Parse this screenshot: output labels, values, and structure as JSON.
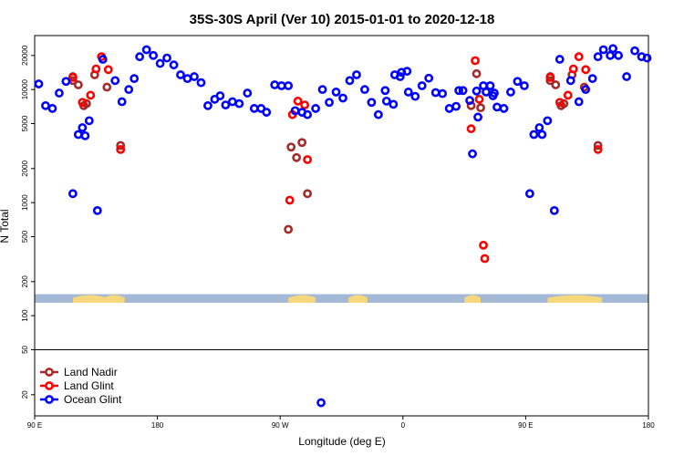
{
  "chart_data": {
    "type": "scatter",
    "title": "35S-30S April (Ver 10)   2015-01-01 to 2020-12-18",
    "xlabel": "Longitude (deg E)",
    "ylabel": "N Total",
    "x_scale": "extended longitude (deg E, 90E to 180 wrapping)",
    "xlim": [
      90,
      540
    ],
    "y_scale": "log",
    "ylim": [
      13,
      30000
    ],
    "x_ticks": [
      {
        "value": 90,
        "label": "90 E"
      },
      {
        "value": 180,
        "label": "180"
      },
      {
        "value": 270,
        "label": "90 W"
      },
      {
        "value": 360,
        "label": "0"
      },
      {
        "value": 450,
        "label": "90 E"
      },
      {
        "value": 540,
        "label": "180"
      }
    ],
    "y_ticks": [
      {
        "value": 20,
        "label": "20"
      },
      {
        "value": 50,
        "label": "50"
      },
      {
        "value": 100,
        "label": "100"
      },
      {
        "value": 200,
        "label": "200"
      },
      {
        "value": 500,
        "label": "500"
      },
      {
        "value": 1000,
        "label": "1000"
      },
      {
        "value": 2000,
        "label": "2000"
      },
      {
        "value": 5000,
        "label": "5000"
      },
      {
        "value": 10000,
        "label": "10000"
      },
      {
        "value": 20000,
        "label": "20000"
      }
    ],
    "reference_line_y": 50,
    "land_band_y": [
      130,
      155
    ],
    "band_colors": {
      "ocean": "#a3b9d6",
      "land": "#f7d77c"
    },
    "land_segments": [
      {
        "center": 130,
        "half_width": 12
      },
      {
        "center": 148,
        "half_width": 8
      },
      {
        "center": 286,
        "half_width": 10
      },
      {
        "center": 327,
        "half_width": 7
      },
      {
        "center": 411,
        "half_width": 6
      },
      {
        "center": 486,
        "half_width": 20
      }
    ],
    "legend": {
      "position": "bottom-left"
    },
    "series": [
      {
        "name": "Land Nadir",
        "color": "#a52a2a",
        "points": [
          [
            118,
            12000
          ],
          [
            118,
            13000
          ],
          [
            122,
            11000
          ],
          [
            126,
            7200
          ],
          [
            128,
            7500
          ],
          [
            134,
            13500
          ],
          [
            143,
            10500
          ],
          [
            153,
            3200
          ],
          [
            276,
            580
          ],
          [
            278,
            3100
          ],
          [
            282,
            2500
          ],
          [
            286,
            3400
          ],
          [
            290,
            1200
          ],
          [
            410,
            7200
          ],
          [
            414,
            13800
          ],
          [
            417,
            6900
          ],
          [
            468,
            12000
          ],
          [
            468,
            13000
          ],
          [
            472,
            11000
          ],
          [
            476,
            7200
          ],
          [
            478,
            7500
          ],
          [
            484,
            13500
          ],
          [
            493,
            10500
          ],
          [
            503,
            3200
          ]
        ]
      },
      {
        "name": "Land Glint",
        "color": "#ff0000",
        "points": [
          [
            118,
            12800
          ],
          [
            125,
            7700
          ],
          [
            131,
            8900
          ],
          [
            135,
            15200
          ],
          [
            139,
            19500
          ],
          [
            144,
            15000
          ],
          [
            153,
            2950
          ],
          [
            277,
            1050
          ],
          [
            279,
            6000
          ],
          [
            283,
            7900
          ],
          [
            288,
            7300
          ],
          [
            290,
            2400
          ],
          [
            410,
            4500
          ],
          [
            413,
            18000
          ],
          [
            416,
            8200
          ],
          [
            419,
            420
          ],
          [
            420,
            320
          ],
          [
            468,
            12800
          ],
          [
            475,
            7700
          ],
          [
            481,
            8900
          ],
          [
            485,
            15200
          ],
          [
            489,
            19500
          ],
          [
            494,
            15000
          ],
          [
            503,
            2950
          ]
        ]
      },
      {
        "name": "Ocean Glint",
        "color": "#0000ff",
        "points": [
          [
            93,
            11200
          ],
          [
            98,
            7200
          ],
          [
            103,
            6800
          ],
          [
            108,
            9300
          ],
          [
            113,
            11800
          ],
          [
            118,
            1200
          ],
          [
            122,
            4000
          ],
          [
            125,
            4600
          ],
          [
            127,
            3900
          ],
          [
            130,
            5300
          ],
          [
            136,
            850
          ],
          [
            140,
            18500
          ],
          [
            149,
            12000
          ],
          [
            154,
            7800
          ],
          [
            159,
            10000
          ],
          [
            163,
            12500
          ],
          [
            167,
            19500
          ],
          [
            172,
            22500
          ],
          [
            177,
            20000
          ],
          [
            182,
            17000
          ],
          [
            187,
            19000
          ],
          [
            192,
            16500
          ],
          [
            197,
            13500
          ],
          [
            202,
            12500
          ],
          [
            207,
            13000
          ],
          [
            212,
            11500
          ],
          [
            217,
            7200
          ],
          [
            222,
            8200
          ],
          [
            226,
            8800
          ],
          [
            230,
            7300
          ],
          [
            235,
            7800
          ],
          [
            240,
            7500
          ],
          [
            246,
            9300
          ],
          [
            251,
            6800
          ],
          [
            256,
            6800
          ],
          [
            260,
            6300
          ],
          [
            266,
            11000
          ],
          [
            271,
            10800
          ],
          [
            276,
            10800
          ],
          [
            281,
            6500
          ],
          [
            286,
            6300
          ],
          [
            290,
            6000
          ],
          [
            296,
            6800
          ],
          [
            301,
            10000
          ],
          [
            306,
            7700
          ],
          [
            311,
            9500
          ],
          [
            316,
            8400
          ],
          [
            321,
            12000
          ],
          [
            326,
            13500
          ],
          [
            332,
            10000
          ],
          [
            337,
            7700
          ],
          [
            342,
            6000
          ],
          [
            348,
            7900
          ],
          [
            354,
            13500
          ],
          [
            359,
            14200
          ],
          [
            364,
            9500
          ],
          [
            369,
            8700
          ],
          [
            374,
            10800
          ],
          [
            379,
            12600
          ],
          [
            384,
            9400
          ],
          [
            389,
            9200
          ],
          [
            394,
            6800
          ],
          [
            399,
            7100
          ],
          [
            404,
            9800
          ],
          [
            409,
            8000
          ],
          [
            414,
            9700
          ],
          [
            419,
            10800
          ],
          [
            424,
            10800
          ],
          [
            429,
            7000
          ],
          [
            434,
            6800
          ],
          [
            439,
            9500
          ],
          [
            444,
            11800
          ],
          [
            449,
            10800
          ],
          [
            453,
            1200
          ],
          [
            456,
            4000
          ],
          [
            460,
            4600
          ],
          [
            462,
            4000
          ],
          [
            466,
            5300
          ],
          [
            471,
            850
          ],
          [
            475,
            18500
          ],
          [
            483,
            12000
          ],
          [
            489,
            7800
          ],
          [
            494,
            10000
          ],
          [
            499,
            12500
          ],
          [
            503,
            19500
          ],
          [
            507,
            22500
          ],
          [
            512,
            20000
          ],
          [
            535,
            19500
          ],
          [
            539,
            19000
          ],
          [
            300,
            17
          ],
          [
            411,
            2700
          ],
          [
            415,
            5700
          ],
          [
            421,
            9500
          ],
          [
            426,
            8800
          ],
          [
            427,
            9300
          ],
          [
            401,
            9800
          ],
          [
            347,
            9800
          ],
          [
            353,
            7400
          ],
          [
            358,
            13000
          ],
          [
            363,
            14500
          ],
          [
            514,
            23000
          ],
          [
            518,
            20000
          ],
          [
            524,
            13000
          ],
          [
            530,
            22000
          ]
        ]
      }
    ]
  }
}
